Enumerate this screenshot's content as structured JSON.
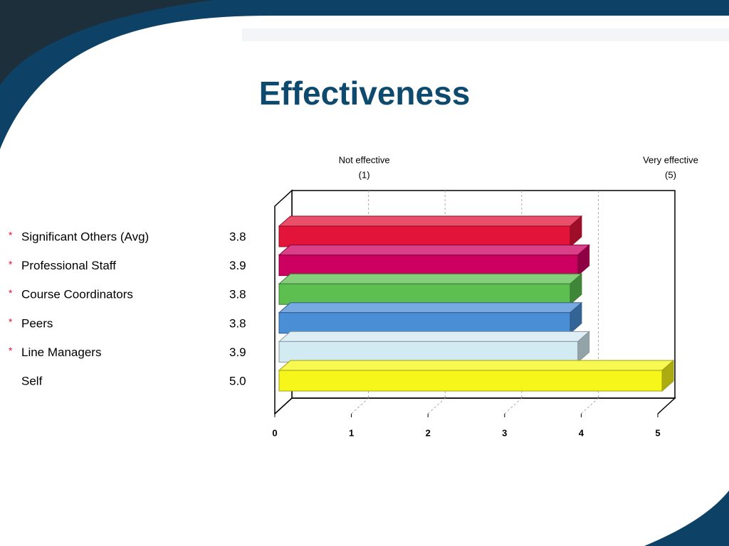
{
  "chart_data": {
    "type": "bar3d_horizontal",
    "title": "Effectiveness",
    "categories": [
      "Significant Others (Avg)",
      "Professional Staff",
      "Course Coordinators",
      "Peers",
      "Line Managers",
      "Self"
    ],
    "values": [
      3.8,
      3.9,
      3.8,
      3.8,
      3.9,
      5
    ],
    "value_labels": [
      "3.8",
      "3.9",
      "3.8",
      "3.8",
      "3.9",
      "5.0"
    ],
    "colors": [
      "#e2143a",
      "#cc0060",
      "#5cbf50",
      "#4a8ed6",
      "#d2eaf2",
      "#f6f61a"
    ],
    "bulleted": [
      true,
      true,
      true,
      true,
      true,
      false
    ],
    "xlim": [
      0,
      5
    ],
    "xticks": [
      0,
      1,
      2,
      3,
      4,
      5
    ],
    "grid": true,
    "annotations": [
      {
        "x": 1,
        "lines": [
          "Not effective",
          "(1)"
        ]
      },
      {
        "x": 5,
        "lines": [
          "Very effective",
          "(5)"
        ]
      }
    ]
  }
}
